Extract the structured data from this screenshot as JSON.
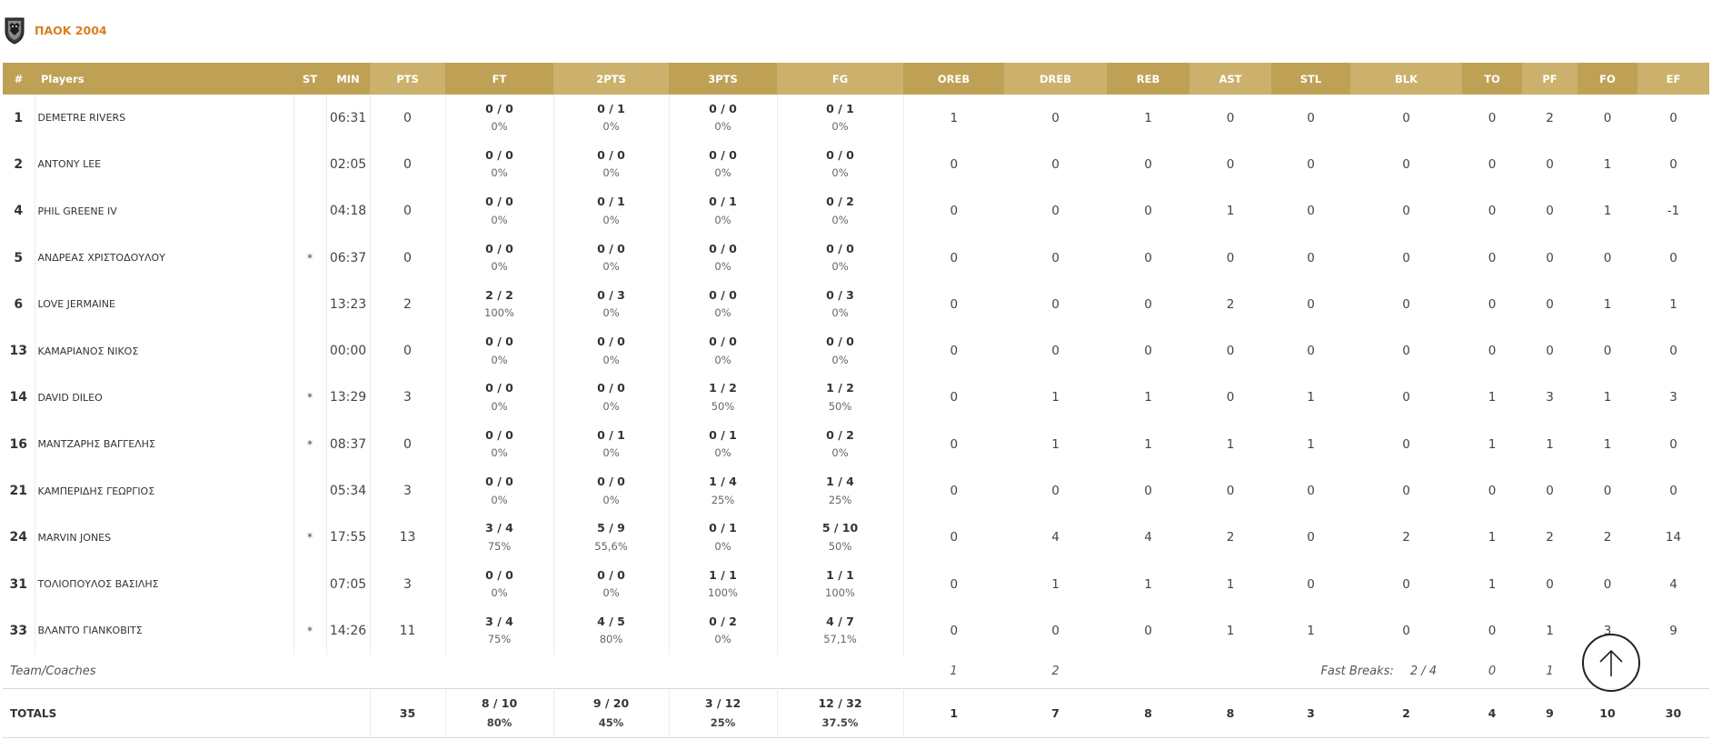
{
  "team": {
    "name": "ΠΑΟΚ 2004",
    "logo_icon": "paok-eagle-crest-icon",
    "accent_color": "#d87f1f"
  },
  "table": {
    "header_colors": {
      "dark": "#bfa155",
      "light": "#cbb16b"
    },
    "headers": {
      "number": "#",
      "players": "Players",
      "st": "ST",
      "min": "MIN",
      "pts": "PTS",
      "ft": "FT",
      "two_pts": "2PTS",
      "three_pts": "3PTS",
      "fg": "FG",
      "oreb": "OREB",
      "dreb": "DREB",
      "reb": "REB",
      "ast": "AST",
      "stl": "STL",
      "blk": "BLK",
      "to": "TO",
      "pf": "PF",
      "fo": "FO",
      "ef": "EF"
    },
    "players": [
      {
        "number": "1",
        "name": "DEMETRE RIVERS",
        "st": "",
        "min": "06:31",
        "pts": "0",
        "ft": "0 / 0",
        "ft_pct": "0%",
        "two": "0 / 1",
        "two_pct": "0%",
        "three": "0 / 0",
        "three_pct": "0%",
        "fg": "0 / 1",
        "fg_pct": "0%",
        "oreb": "1",
        "dreb": "0",
        "reb": "1",
        "ast": "0",
        "stl": "0",
        "blk": "0",
        "to": "0",
        "pf": "2",
        "fo": "0",
        "ef": "0"
      },
      {
        "number": "2",
        "name": "ANTONY LEE",
        "st": "",
        "min": "02:05",
        "pts": "0",
        "ft": "0 / 0",
        "ft_pct": "0%",
        "two": "0 / 0",
        "two_pct": "0%",
        "three": "0 / 0",
        "three_pct": "0%",
        "fg": "0 / 0",
        "fg_pct": "0%",
        "oreb": "0",
        "dreb": "0",
        "reb": "0",
        "ast": "0",
        "stl": "0",
        "blk": "0",
        "to": "0",
        "pf": "0",
        "fo": "1",
        "ef": "0"
      },
      {
        "number": "4",
        "name": "PHIL GREENE IV",
        "st": "",
        "min": "04:18",
        "pts": "0",
        "ft": "0 / 0",
        "ft_pct": "0%",
        "two": "0 / 1",
        "two_pct": "0%",
        "three": "0 / 1",
        "three_pct": "0%",
        "fg": "0 / 2",
        "fg_pct": "0%",
        "oreb": "0",
        "dreb": "0",
        "reb": "0",
        "ast": "1",
        "stl": "0",
        "blk": "0",
        "to": "0",
        "pf": "0",
        "fo": "1",
        "ef": "-1"
      },
      {
        "number": "5",
        "name": "ΑΝΔΡΕΑΣ ΧΡΙΣΤΟΔΟΥΛΟΥ",
        "st": "*",
        "min": "06:37",
        "pts": "0",
        "ft": "0 / 0",
        "ft_pct": "0%",
        "two": "0 / 0",
        "two_pct": "0%",
        "three": "0 / 0",
        "three_pct": "0%",
        "fg": "0 / 0",
        "fg_pct": "0%",
        "oreb": "0",
        "dreb": "0",
        "reb": "0",
        "ast": "0",
        "stl": "0",
        "blk": "0",
        "to": "0",
        "pf": "0",
        "fo": "0",
        "ef": "0"
      },
      {
        "number": "6",
        "name": "LOVE JERMAINE",
        "st": "",
        "min": "13:23",
        "pts": "2",
        "ft": "2 / 2",
        "ft_pct": "100%",
        "two": "0 / 3",
        "two_pct": "0%",
        "three": "0 / 0",
        "three_pct": "0%",
        "fg": "0 / 3",
        "fg_pct": "0%",
        "oreb": "0",
        "dreb": "0",
        "reb": "0",
        "ast": "2",
        "stl": "0",
        "blk": "0",
        "to": "0",
        "pf": "0",
        "fo": "1",
        "ef": "1"
      },
      {
        "number": "13",
        "name": "ΚΑΜΑΡΙΑΝΟΣ ΝΙΚΟΣ",
        "st": "",
        "min": "00:00",
        "pts": "0",
        "ft": "0 / 0",
        "ft_pct": "0%",
        "two": "0 / 0",
        "two_pct": "0%",
        "three": "0 / 0",
        "three_pct": "0%",
        "fg": "0 / 0",
        "fg_pct": "0%",
        "oreb": "0",
        "dreb": "0",
        "reb": "0",
        "ast": "0",
        "stl": "0",
        "blk": "0",
        "to": "0",
        "pf": "0",
        "fo": "0",
        "ef": "0"
      },
      {
        "number": "14",
        "name": "DAVID DILEO",
        "st": "*",
        "min": "13:29",
        "pts": "3",
        "ft": "0 / 0",
        "ft_pct": "0%",
        "two": "0 / 0",
        "two_pct": "0%",
        "three": "1 / 2",
        "three_pct": "50%",
        "fg": "1 / 2",
        "fg_pct": "50%",
        "oreb": "0",
        "dreb": "1",
        "reb": "1",
        "ast": "0",
        "stl": "1",
        "blk": "0",
        "to": "1",
        "pf": "3",
        "fo": "1",
        "ef": "3"
      },
      {
        "number": "16",
        "name": "ΜΑΝΤΖΑΡΗΣ ΒΑΓΓΕΛΗΣ",
        "st": "*",
        "min": "08:37",
        "pts": "0",
        "ft": "0 / 0",
        "ft_pct": "0%",
        "two": "0 / 1",
        "two_pct": "0%",
        "three": "0 / 1",
        "three_pct": "0%",
        "fg": "0 / 2",
        "fg_pct": "0%",
        "oreb": "0",
        "dreb": "1",
        "reb": "1",
        "ast": "1",
        "stl": "1",
        "blk": "0",
        "to": "1",
        "pf": "1",
        "fo": "1",
        "ef": "0"
      },
      {
        "number": "21",
        "name": "ΚΑΜΠΕΡΙΔΗΣ ΓΕΩΡΓΙΟΣ",
        "st": "",
        "min": "05:34",
        "pts": "3",
        "ft": "0 / 0",
        "ft_pct": "0%",
        "two": "0 / 0",
        "two_pct": "0%",
        "three": "1 / 4",
        "three_pct": "25%",
        "fg": "1 / 4",
        "fg_pct": "25%",
        "oreb": "0",
        "dreb": "0",
        "reb": "0",
        "ast": "0",
        "stl": "0",
        "blk": "0",
        "to": "0",
        "pf": "0",
        "fo": "0",
        "ef": "0"
      },
      {
        "number": "24",
        "name": "MARVIN JONES",
        "st": "*",
        "min": "17:55",
        "pts": "13",
        "ft": "3 / 4",
        "ft_pct": "75%",
        "two": "5 / 9",
        "two_pct": "55,6%",
        "three": "0 / 1",
        "three_pct": "0%",
        "fg": "5 / 10",
        "fg_pct": "50%",
        "oreb": "0",
        "dreb": "4",
        "reb": "4",
        "ast": "2",
        "stl": "0",
        "blk": "2",
        "to": "1",
        "pf": "2",
        "fo": "2",
        "ef": "14"
      },
      {
        "number": "31",
        "name": "ΤΟΛΙΟΠΟΥΛΟΣ ΒΑΣΙΛΗΣ",
        "st": "",
        "min": "07:05",
        "pts": "3",
        "ft": "0 / 0",
        "ft_pct": "0%",
        "two": "0 / 0",
        "two_pct": "0%",
        "three": "1 / 1",
        "three_pct": "100%",
        "fg": "1 / 1",
        "fg_pct": "100%",
        "oreb": "0",
        "dreb": "1",
        "reb": "1",
        "ast": "1",
        "stl": "0",
        "blk": "0",
        "to": "1",
        "pf": "0",
        "fo": "0",
        "ef": "4"
      },
      {
        "number": "33",
        "name": "ΒΛΑΝΤΟ ΓΙΑΝΚΟΒΙΤΣ",
        "st": "*",
        "min": "14:26",
        "pts": "11",
        "ft": "3 / 4",
        "ft_pct": "75%",
        "two": "4 / 5",
        "two_pct": "80%",
        "three": "0 / 2",
        "three_pct": "0%",
        "fg": "4 / 7",
        "fg_pct": "57,1%",
        "oreb": "0",
        "dreb": "0",
        "reb": "0",
        "ast": "1",
        "stl": "1",
        "blk": "0",
        "to": "0",
        "pf": "1",
        "fo": "3",
        "ef": "9"
      }
    ],
    "team_coaches": {
      "label": "Team/Coaches",
      "oreb": "1",
      "dreb": "2",
      "fast_breaks_label": "Fast Breaks:",
      "fast_breaks_value": "2 / 4",
      "to": "0",
      "pf": "1"
    },
    "totals": {
      "label": "TOTALS",
      "pts": "35",
      "ft": "8 / 10",
      "ft_pct": "80%",
      "two": "9 / 20",
      "two_pct": "45%",
      "three": "3 / 12",
      "three_pct": "25%",
      "fg": "12 / 32",
      "fg_pct": "37.5%",
      "oreb": "1",
      "dreb": "7",
      "reb": "8",
      "ast": "8",
      "stl": "3",
      "blk": "2",
      "to": "4",
      "pf": "9",
      "fo": "10",
      "ef": "30"
    }
  },
  "back_to_top": {
    "icon": "arrow-up-icon"
  }
}
